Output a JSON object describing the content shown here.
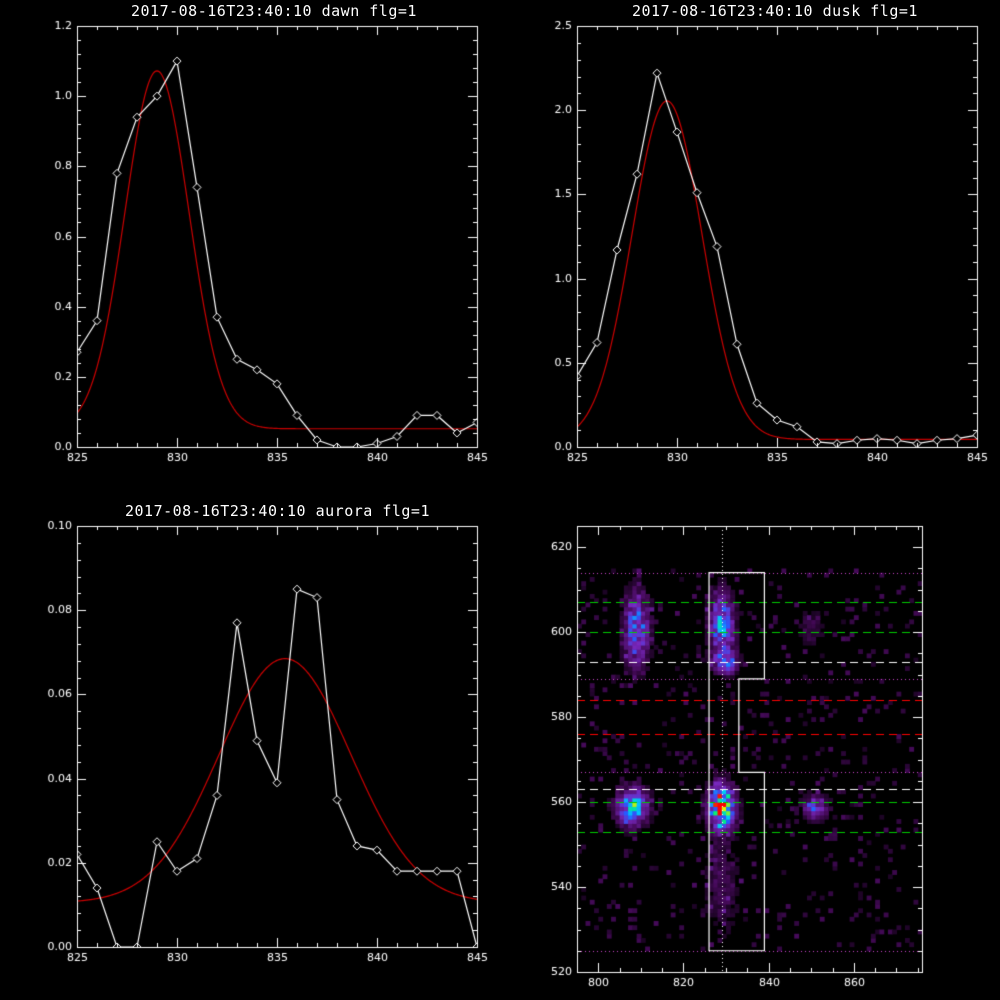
{
  "chart_data": [
    {
      "id": "dawn",
      "type": "line",
      "title": "2017-08-16T23:40:10 dawn flg=1",
      "xlim": [
        825,
        845
      ],
      "ylim": [
        0,
        1.2
      ],
      "xticks": [
        825,
        830,
        835,
        840,
        845
      ],
      "yticks": [
        0.0,
        0.2,
        0.4,
        0.6,
        0.8,
        1.0,
        1.2
      ],
      "ytick_labels": [
        "0.0",
        "0.2",
        "0.4",
        "0.6",
        "0.8",
        "1.0",
        "1.2"
      ],
      "series": [
        {
          "color": "#ffffff",
          "marker": "diamond",
          "x": [
            825,
            826,
            827,
            828,
            829,
            830,
            831,
            832,
            833,
            834,
            835,
            836,
            837,
            838,
            839,
            840,
            841,
            842,
            843,
            844,
            845
          ],
          "y": [
            0.27,
            0.36,
            0.78,
            0.94,
            1.0,
            1.1,
            0.74,
            0.37,
            0.25,
            0.22,
            0.18,
            0.09,
            0.02,
            0.0,
            0.0,
            0.01,
            0.03,
            0.09,
            0.09,
            0.04,
            0.07
          ]
        },
        {
          "color": "#cc0000",
          "model": "gauss",
          "amp": 1.02,
          "center": 829.0,
          "sigma": 1.6,
          "offset": 0.052
        }
      ]
    },
    {
      "id": "dusk",
      "type": "line",
      "title": "2017-08-16T23:40:10 dusk flg=1",
      "xlim": [
        825,
        845
      ],
      "ylim": [
        0,
        2.5
      ],
      "xticks": [
        825,
        830,
        835,
        840,
        845
      ],
      "yticks": [
        0.0,
        0.5,
        1.0,
        1.5,
        2.0,
        2.5
      ],
      "ytick_labels": [
        "0.0",
        "0.5",
        "1.0",
        "1.5",
        "2.0",
        "2.5"
      ],
      "series": [
        {
          "color": "#ffffff",
          "marker": "diamond",
          "x": [
            825,
            826,
            827,
            828,
            829,
            830,
            831,
            832,
            833,
            834,
            835,
            836,
            837,
            838,
            839,
            840,
            841,
            842,
            843,
            844,
            845
          ],
          "y": [
            0.42,
            0.62,
            1.17,
            1.62,
            2.22,
            1.87,
            1.51,
            1.19,
            0.61,
            0.26,
            0.16,
            0.12,
            0.03,
            0.02,
            0.04,
            0.05,
            0.04,
            0.02,
            0.04,
            0.05,
            0.07
          ]
        },
        {
          "color": "#cc0000",
          "model": "gauss",
          "amp": 2.01,
          "center": 829.5,
          "sigma": 1.75,
          "offset": 0.045
        }
      ]
    },
    {
      "id": "aurora",
      "type": "line",
      "title": "2017-08-16T23:40:10 aurora flg=1",
      "xlim": [
        825,
        845
      ],
      "ylim": [
        0,
        0.1
      ],
      "xticks": [
        825,
        830,
        835,
        840,
        845
      ],
      "yticks": [
        0.0,
        0.02,
        0.04,
        0.06,
        0.08,
        0.1
      ],
      "ytick_labels": [
        "0.00",
        "0.02",
        "0.04",
        "0.06",
        "0.08",
        "0.10"
      ],
      "series": [
        {
          "color": "#ffffff",
          "marker": "diamond",
          "x": [
            825,
            826,
            827,
            828,
            829,
            830,
            831,
            832,
            833,
            834,
            835,
            836,
            837,
            838,
            839,
            840,
            841,
            842,
            843,
            844,
            845
          ],
          "y": [
            0.022,
            0.014,
            0.0,
            0.0,
            0.025,
            0.018,
            0.021,
            0.036,
            0.077,
            0.049,
            0.039,
            0.085,
            0.083,
            0.035,
            0.024,
            0.023,
            0.018,
            0.018,
            0.018,
            0.018,
            0.0
          ]
        },
        {
          "color": "#cc0000",
          "model": "gauss",
          "amp": 0.058,
          "center": 835.4,
          "sigma": 3.3,
          "offset": 0.0105
        }
      ]
    },
    {
      "id": "image",
      "type": "heatmap",
      "xlim": [
        795,
        876
      ],
      "ylim": [
        520,
        625
      ],
      "xticks": [
        800,
        820,
        840,
        860
      ],
      "yticks": [
        520,
        540,
        560,
        580,
        600,
        620
      ],
      "blobs": [
        {
          "x": 829,
          "y": 559,
          "sx": 2.0,
          "sy": 3.5,
          "amp": 1.0
        },
        {
          "x": 808,
          "y": 559,
          "sx": 2.5,
          "sy": 3.0,
          "amp": 0.65
        },
        {
          "x": 829,
          "y": 602,
          "sx": 2.0,
          "sy": 5.0,
          "amp": 0.55
        },
        {
          "x": 830,
          "y": 593,
          "sx": 2.0,
          "sy": 2.0,
          "amp": 0.4
        },
        {
          "x": 809,
          "y": 601,
          "sx": 2.0,
          "sy": 6.0,
          "amp": 0.5
        },
        {
          "x": 851,
          "y": 559,
          "sx": 2.0,
          "sy": 2.0,
          "amp": 0.4
        },
        {
          "x": 850,
          "y": 601,
          "sx": 2.0,
          "sy": 3.0,
          "amp": 0.15
        },
        {
          "x": 829,
          "y": 540,
          "sx": 3.0,
          "sy": 8.0,
          "amp": 0.14
        }
      ],
      "lines": [
        {
          "y": 614,
          "color": "#cc44cc",
          "style": "dotted"
        },
        {
          "y": 607,
          "color": "#00cc00",
          "style": "dashed"
        },
        {
          "y": 600,
          "color": "#00cc00",
          "style": "dashed"
        },
        {
          "y": 593,
          "color": "#ffffff",
          "style": "dashed"
        },
        {
          "y": 589,
          "color": "#cc44cc",
          "style": "dotted"
        },
        {
          "y": 584,
          "color": "#ff0000",
          "style": "dashed"
        },
        {
          "y": 576,
          "color": "#ff0000",
          "style": "dashed"
        },
        {
          "y": 567,
          "color": "#cc44cc",
          "style": "dotted"
        },
        {
          "y": 563,
          "color": "#ffffff",
          "style": "dashed"
        },
        {
          "y": 560,
          "color": "#00cc00",
          "style": "dashed"
        },
        {
          "y": 553,
          "color": "#00cc00",
          "style": "dashed"
        },
        {
          "y": 525,
          "color": "#cc44cc",
          "style": "dotted"
        }
      ],
      "vline": {
        "x": 829,
        "color": "#ffffff",
        "style": "dotted"
      },
      "box_outline": [
        [
          826,
          614
        ],
        [
          839,
          614
        ],
        [
          839,
          589
        ],
        [
          833,
          589
        ],
        [
          833,
          567
        ],
        [
          839,
          567
        ],
        [
          839,
          525
        ],
        [
          826,
          525
        ]
      ]
    }
  ]
}
